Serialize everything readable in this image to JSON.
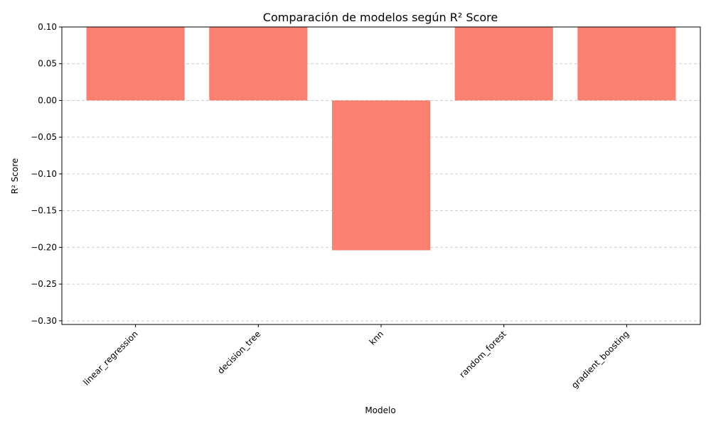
{
  "chart_data": {
    "type": "bar",
    "title": "Comparación de modelos según R² Score",
    "xlabel": "Modelo",
    "ylabel": "R² Score",
    "categories": [
      "linear_regression",
      "decision_tree",
      "knn",
      "random_forest",
      "gradient_boosting"
    ],
    "values": [
      0.1,
      0.1,
      -0.204,
      0.1,
      0.1
    ],
    "ylim": [
      -0.305,
      0.1
    ],
    "yticks": [
      0.1,
      0.05,
      0.0,
      -0.05,
      -0.1,
      -0.15,
      -0.2,
      -0.25,
      -0.3
    ],
    "ytick_labels": [
      "0.10",
      "0.05",
      "0.00",
      "−0.05",
      "−0.10",
      "−0.15",
      "−0.20",
      "−0.25",
      "−0.30"
    ],
    "grid": "y-dashed",
    "bar_color": "#FA8072",
    "grid_color": "#cccccc"
  }
}
